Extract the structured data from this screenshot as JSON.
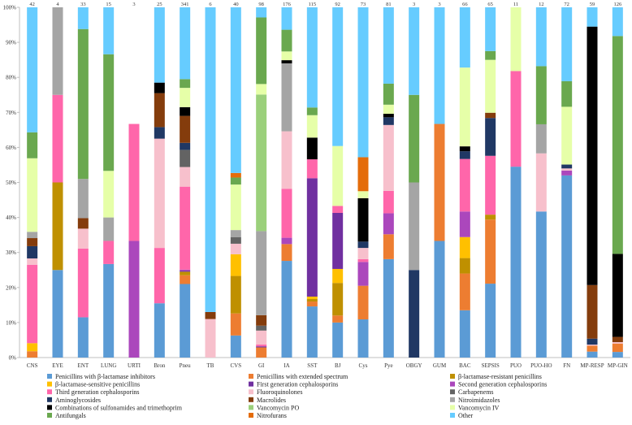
{
  "chart_data": {
    "type": "bar",
    "stacked": true,
    "normalized": true,
    "title": "",
    "xlabel": "",
    "ylabel": "",
    "ylim": [
      0,
      100
    ],
    "y_ticks": [
      "0%",
      "10%",
      "20%",
      "30%",
      "40%",
      "50%",
      "60%",
      "70%",
      "80%",
      "90%",
      "100%"
    ],
    "grid": false,
    "legend_position": "bottom",
    "categories": [
      "CNS",
      "EYE",
      "ENT",
      "LUNG",
      "URTI",
      "Bron",
      "Pneu",
      "TB",
      "CVS",
      "GI",
      "IA",
      "SST",
      "BJ",
      "Cys",
      "Pye",
      "OBGY",
      "GUM",
      "BAC",
      "SEPSIS",
      "PUO",
      "PUO-HO",
      "FN",
      "MP-RESP",
      "MP-GIN"
    ],
    "counts": [
      "42",
      "4",
      "33",
      "15",
      "3",
      "25",
      "341",
      "6",
      "40",
      "98",
      "176",
      "115",
      "92",
      "73",
      "81",
      "3",
      "3",
      "66",
      "65",
      "11",
      "12",
      "72",
      "59",
      "126"
    ],
    "series": [
      {
        "name": "Penicillins with β-lactamase inhibitors",
        "color": "#5b9bd5",
        "values": [
          0,
          25,
          11.5,
          26.7,
          0,
          15.5,
          21,
          0,
          6.3,
          0,
          27.6,
          14.6,
          10,
          10.9,
          28.1,
          0,
          33.3,
          13.5,
          21.1,
          54.5,
          41.7,
          52,
          1.7,
          1.6
        ]
      },
      {
        "name": "Penicillins with extended spectrum",
        "color": "#ed7d31",
        "values": [
          1.8,
          0,
          0,
          0,
          0,
          0,
          2.5,
          0,
          6.3,
          2.9,
          4.8,
          1.4,
          2,
          9.6,
          7.1,
          0,
          33.4,
          10.5,
          18.3,
          0,
          0,
          0,
          1.7,
          2.4
        ]
      },
      {
        "name": "β-lactamase-resistant penicillins",
        "color": "#bf9000",
        "values": [
          0,
          25,
          0,
          0,
          0,
          0,
          1,
          0,
          10.7,
          0,
          0,
          0.7,
          9.3,
          0,
          0,
          0,
          0,
          4.4,
          1.4,
          0,
          0,
          0,
          0,
          0
        ]
      },
      {
        "name": "β-lactamase-sensitive penicillins",
        "color": "#ffc000",
        "values": [
          2.3,
          0,
          0,
          0,
          0,
          0,
          0,
          0,
          6.2,
          0,
          0,
          0.7,
          4,
          0,
          0,
          0,
          0,
          6,
          0,
          0,
          0,
          0,
          0,
          0
        ]
      },
      {
        "name": "First generation cephalosporins",
        "color": "#7030a0",
        "values": [
          0,
          0,
          0,
          0,
          0,
          0,
          0.3,
          0,
          0,
          0.3,
          0,
          33.8,
          16,
          0,
          0,
          0,
          0,
          0,
          0,
          0,
          0,
          0,
          0,
          0
        ]
      },
      {
        "name": "Second generation cephalosporins",
        "color": "#ab47bc",
        "values": [
          0,
          0,
          0,
          0,
          33.3,
          0,
          0.3,
          0,
          0,
          0,
          1.8,
          0,
          0,
          6.8,
          6,
          0,
          0,
          7.3,
          0,
          0,
          0,
          1.4,
          0,
          0
        ]
      },
      {
        "name": "Third generation cephalosporins",
        "color": "#ff66aa",
        "values": [
          22.4,
          25,
          19.6,
          6.6,
          33.4,
          15.8,
          23.7,
          0,
          0,
          0.5,
          14,
          5.4,
          2,
          0.8,
          6.4,
          0,
          0,
          15,
          16.8,
          27.3,
          0,
          0,
          0,
          0
        ]
      },
      {
        "name": "Fluoroquinolones",
        "color": "#f7c0cc",
        "values": [
          1.8,
          0,
          5.7,
          0,
          0,
          31.2,
          5.6,
          11,
          3,
          4,
          16.4,
          0,
          0,
          3.2,
          18.8,
          0,
          0,
          0,
          0,
          0,
          16.6,
          0.6,
          0.3,
          0.4
        ]
      },
      {
        "name": "Carbapenems",
        "color": "#636363",
        "values": [
          0,
          0,
          0,
          0,
          0,
          0,
          4.9,
          0,
          1.9,
          1.4,
          0,
          0,
          0,
          0,
          0,
          0,
          0,
          0,
          0,
          0,
          0,
          0,
          0,
          0
        ]
      },
      {
        "name": "Aminoglycosides",
        "color": "#203864",
        "values": [
          3.5,
          0,
          0,
          0,
          0,
          3.3,
          2,
          0,
          0,
          0,
          0,
          0,
          0,
          1.8,
          2.2,
          25,
          0,
          2.2,
          10.8,
          0,
          0,
          1.1,
          1.7,
          0
        ]
      },
      {
        "name": "Macrolides",
        "color": "#843c0c",
        "values": [
          2.3,
          0,
          3,
          0,
          0,
          9.7,
          7.7,
          2,
          0,
          3,
          0,
          0,
          0,
          0,
          0,
          0,
          0,
          0,
          1.5,
          0,
          0,
          0,
          15.3,
          1.5
        ]
      },
      {
        "name": "Nitroimidazoles",
        "color": "#a5a5a5",
        "values": [
          1.8,
          25,
          11.2,
          6.7,
          0,
          0,
          0,
          0,
          2,
          24,
          19.4,
          0,
          0,
          0,
          0,
          25,
          0,
          0,
          0,
          0,
          8.3,
          0,
          0,
          0
        ]
      },
      {
        "name": "Combinations of sulfonamides and trimethoprim",
        "color": "#000000",
        "values": [
          0,
          0,
          0,
          0,
          0,
          3,
          2.5,
          0,
          0,
          0,
          0.9,
          6.2,
          0,
          12.4,
          1,
          0,
          0,
          1.4,
          0,
          0,
          0,
          0,
          73.8,
          23.7
        ]
      },
      {
        "name": "Vancomycin PO",
        "color": "#9bd07b",
        "values": [
          0,
          0,
          0,
          0,
          0,
          0,
          0,
          0,
          0,
          39,
          0,
          0,
          0,
          0,
          0,
          0,
          0,
          0,
          0,
          0,
          0,
          0,
          0,
          0
        ]
      },
      {
        "name": "Vancomycin IV",
        "color": "#e6ffa8",
        "values": [
          21,
          0,
          0,
          13.3,
          0,
          0,
          5.5,
          0,
          13,
          3,
          2.5,
          6.4,
          17.1,
          2,
          2.6,
          0,
          0,
          22.5,
          15.1,
          18.2,
          0,
          16.5,
          0,
          0
        ]
      },
      {
        "name": "Antifungals",
        "color": "#6aa84f",
        "values": [
          7.4,
          0,
          42.8,
          33.3,
          0,
          0,
          2.5,
          0,
          2,
          19,
          6.2,
          2.2,
          0,
          0,
          6,
          25,
          0,
          0,
          2.5,
          0,
          16.6,
          7.3,
          0,
          62.2
        ]
      },
      {
        "name": "Nitrofurans",
        "color": "#e46c0a",
        "values": [
          0,
          0,
          0,
          0,
          0,
          0,
          0,
          0,
          1.3,
          0,
          0,
          0,
          0,
          9.7,
          0,
          0,
          0,
          0,
          0,
          0,
          0,
          0,
          0,
          0
        ]
      },
      {
        "name": "Other",
        "color": "#66ccff",
        "values": [
          35.7,
          0,
          6.2,
          13.4,
          0,
          21.5,
          20.5,
          87,
          47.3,
          2.9,
          6.4,
          28.6,
          39.6,
          42.8,
          21.8,
          25,
          33.3,
          17.2,
          12.5,
          0,
          16.8,
          21.1,
          5.5,
          8.2
        ]
      }
    ]
  }
}
